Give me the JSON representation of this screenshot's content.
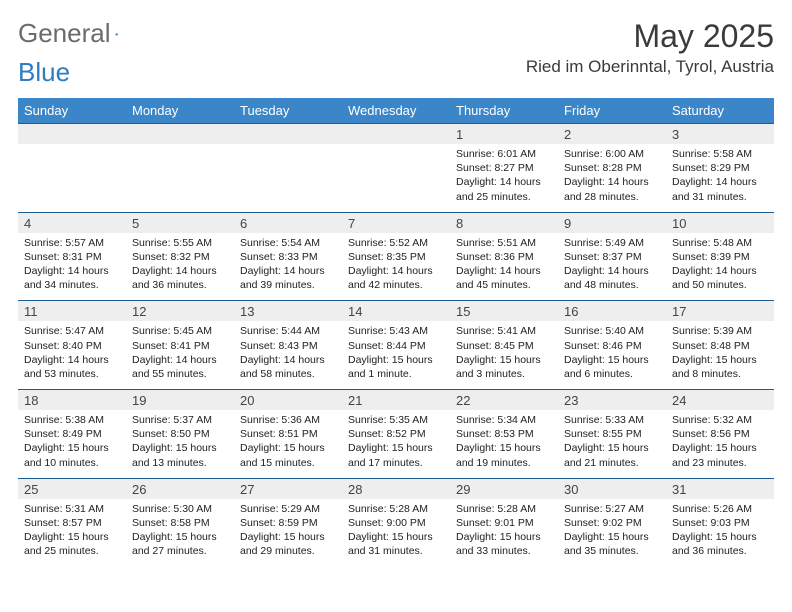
{
  "logo": {
    "word1": "General",
    "word2": "Blue"
  },
  "title": "May 2025",
  "location": "Ried im Oberinntal, Tyrol, Austria",
  "colors": {
    "header_bg": "#3a86c8",
    "header_text": "#ffffff",
    "daynum_bg": "#eeeeee",
    "row_border": "#1f5c94",
    "logo_gray": "#6b6b6b",
    "logo_blue": "#2f7dc0"
  },
  "weekdays": [
    "Sunday",
    "Monday",
    "Tuesday",
    "Wednesday",
    "Thursday",
    "Friday",
    "Saturday"
  ],
  "weeks": [
    [
      null,
      null,
      null,
      null,
      {
        "n": "1",
        "sr": "6:01 AM",
        "ss": "8:27 PM",
        "dl": "14 hours and 25 minutes."
      },
      {
        "n": "2",
        "sr": "6:00 AM",
        "ss": "8:28 PM",
        "dl": "14 hours and 28 minutes."
      },
      {
        "n": "3",
        "sr": "5:58 AM",
        "ss": "8:29 PM",
        "dl": "14 hours and 31 minutes."
      }
    ],
    [
      {
        "n": "4",
        "sr": "5:57 AM",
        "ss": "8:31 PM",
        "dl": "14 hours and 34 minutes."
      },
      {
        "n": "5",
        "sr": "5:55 AM",
        "ss": "8:32 PM",
        "dl": "14 hours and 36 minutes."
      },
      {
        "n": "6",
        "sr": "5:54 AM",
        "ss": "8:33 PM",
        "dl": "14 hours and 39 minutes."
      },
      {
        "n": "7",
        "sr": "5:52 AM",
        "ss": "8:35 PM",
        "dl": "14 hours and 42 minutes."
      },
      {
        "n": "8",
        "sr": "5:51 AM",
        "ss": "8:36 PM",
        "dl": "14 hours and 45 minutes."
      },
      {
        "n": "9",
        "sr": "5:49 AM",
        "ss": "8:37 PM",
        "dl": "14 hours and 48 minutes."
      },
      {
        "n": "10",
        "sr": "5:48 AM",
        "ss": "8:39 PM",
        "dl": "14 hours and 50 minutes."
      }
    ],
    [
      {
        "n": "11",
        "sr": "5:47 AM",
        "ss": "8:40 PM",
        "dl": "14 hours and 53 minutes."
      },
      {
        "n": "12",
        "sr": "5:45 AM",
        "ss": "8:41 PM",
        "dl": "14 hours and 55 minutes."
      },
      {
        "n": "13",
        "sr": "5:44 AM",
        "ss": "8:43 PM",
        "dl": "14 hours and 58 minutes."
      },
      {
        "n": "14",
        "sr": "5:43 AM",
        "ss": "8:44 PM",
        "dl": "15 hours and 1 minute."
      },
      {
        "n": "15",
        "sr": "5:41 AM",
        "ss": "8:45 PM",
        "dl": "15 hours and 3 minutes."
      },
      {
        "n": "16",
        "sr": "5:40 AM",
        "ss": "8:46 PM",
        "dl": "15 hours and 6 minutes."
      },
      {
        "n": "17",
        "sr": "5:39 AM",
        "ss": "8:48 PM",
        "dl": "15 hours and 8 minutes."
      }
    ],
    [
      {
        "n": "18",
        "sr": "5:38 AM",
        "ss": "8:49 PM",
        "dl": "15 hours and 10 minutes."
      },
      {
        "n": "19",
        "sr": "5:37 AM",
        "ss": "8:50 PM",
        "dl": "15 hours and 13 minutes."
      },
      {
        "n": "20",
        "sr": "5:36 AM",
        "ss": "8:51 PM",
        "dl": "15 hours and 15 minutes."
      },
      {
        "n": "21",
        "sr": "5:35 AM",
        "ss": "8:52 PM",
        "dl": "15 hours and 17 minutes."
      },
      {
        "n": "22",
        "sr": "5:34 AM",
        "ss": "8:53 PM",
        "dl": "15 hours and 19 minutes."
      },
      {
        "n": "23",
        "sr": "5:33 AM",
        "ss": "8:55 PM",
        "dl": "15 hours and 21 minutes."
      },
      {
        "n": "24",
        "sr": "5:32 AM",
        "ss": "8:56 PM",
        "dl": "15 hours and 23 minutes."
      }
    ],
    [
      {
        "n": "25",
        "sr": "5:31 AM",
        "ss": "8:57 PM",
        "dl": "15 hours and 25 minutes."
      },
      {
        "n": "26",
        "sr": "5:30 AM",
        "ss": "8:58 PM",
        "dl": "15 hours and 27 minutes."
      },
      {
        "n": "27",
        "sr": "5:29 AM",
        "ss": "8:59 PM",
        "dl": "15 hours and 29 minutes."
      },
      {
        "n": "28",
        "sr": "5:28 AM",
        "ss": "9:00 PM",
        "dl": "15 hours and 31 minutes."
      },
      {
        "n": "29",
        "sr": "5:28 AM",
        "ss": "9:01 PM",
        "dl": "15 hours and 33 minutes."
      },
      {
        "n": "30",
        "sr": "5:27 AM",
        "ss": "9:02 PM",
        "dl": "15 hours and 35 minutes."
      },
      {
        "n": "31",
        "sr": "5:26 AM",
        "ss": "9:03 PM",
        "dl": "15 hours and 36 minutes."
      }
    ]
  ],
  "labels": {
    "sunrise": "Sunrise: ",
    "sunset": "Sunset: ",
    "daylight": "Daylight: "
  }
}
